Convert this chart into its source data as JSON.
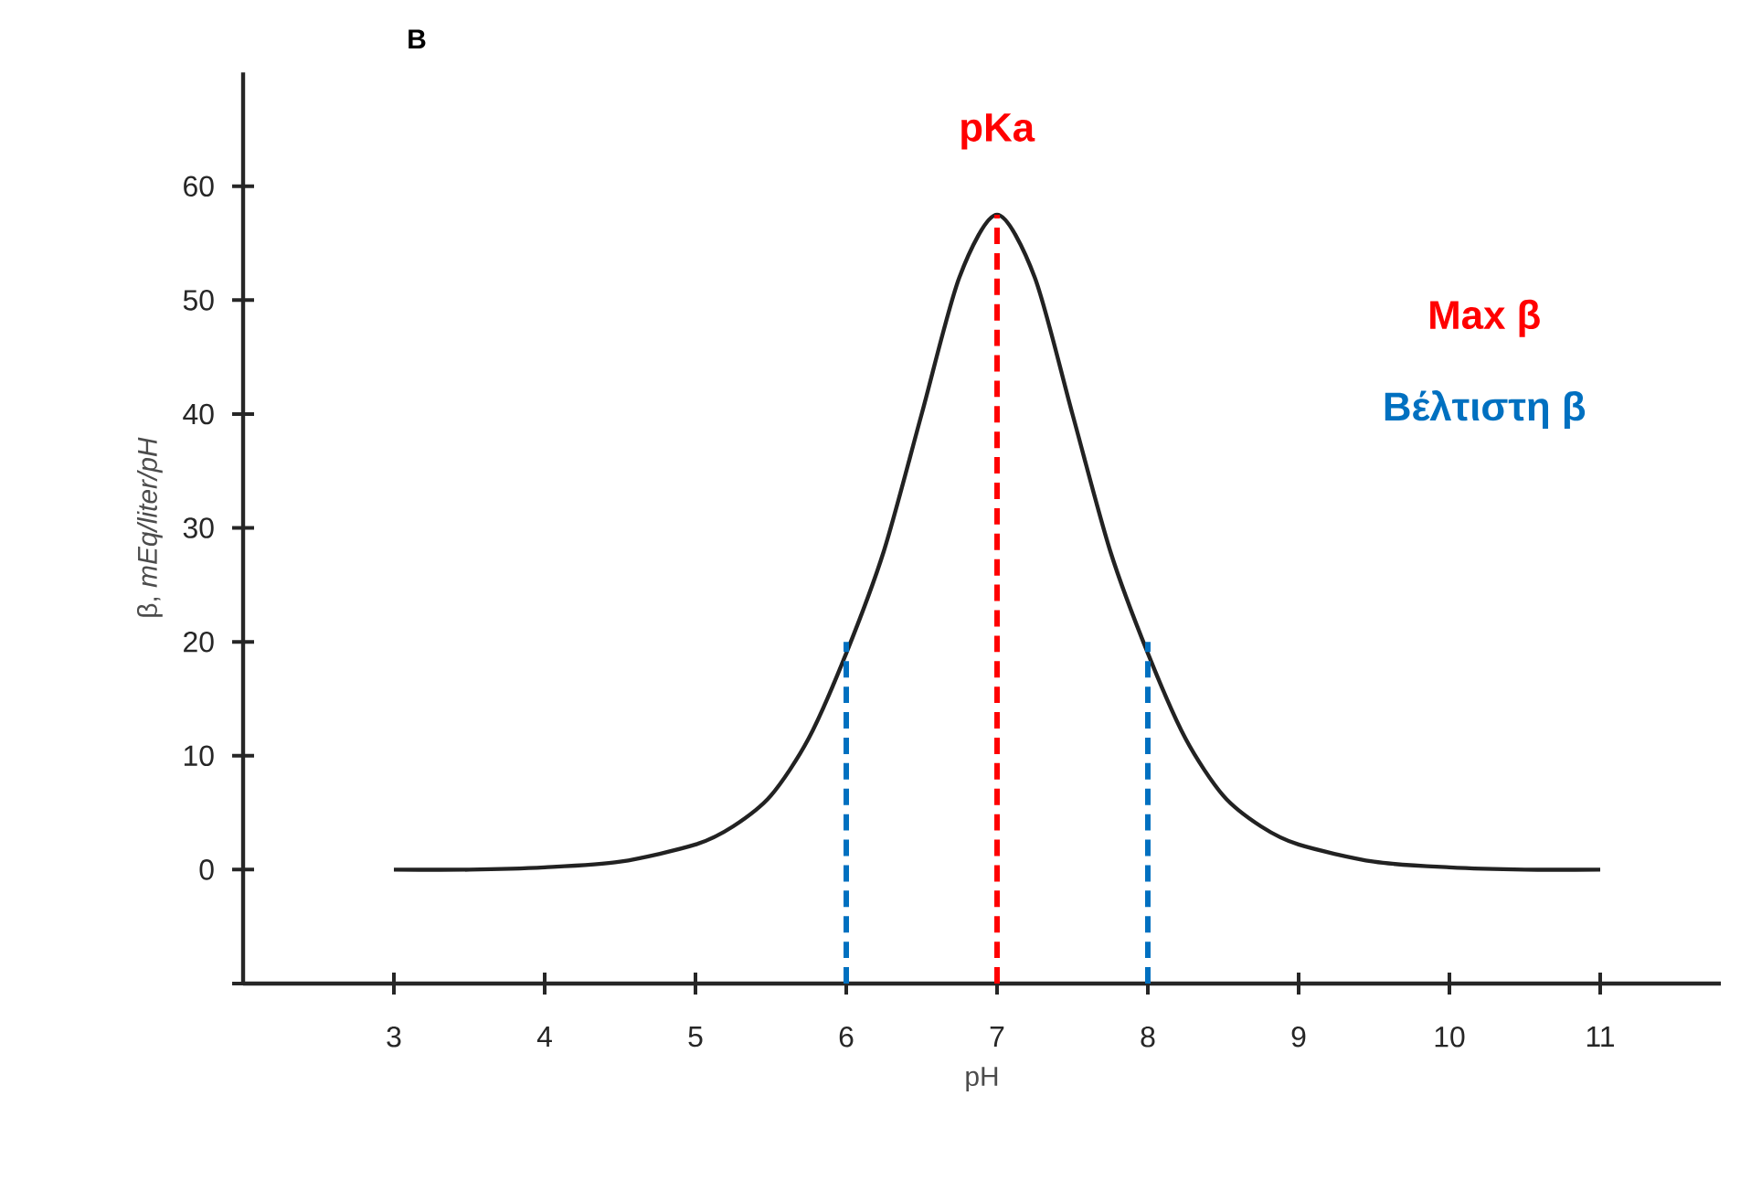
{
  "chart_data": {
    "type": "line",
    "title": "B",
    "xlabel": "pH",
    "ylabel": "β, *mEq/liter/pH*",
    "xlim": [
      2,
      11.8
    ],
    "xticks": [
      3,
      4,
      5,
      6,
      7,
      8,
      9,
      10,
      11
    ],
    "ylim": [
      -10,
      70
    ],
    "yticks": [
      0,
      10,
      20,
      30,
      40,
      50,
      60
    ],
    "grid": false,
    "marker": "none",
    "series": [
      {
        "color": "#222222",
        "line_style": "solid",
        "x": [
          3,
          3.5,
          4,
          4.5,
          5,
          5.25,
          5.5,
          5.75,
          6,
          6.25,
          6.5,
          6.75,
          7,
          7.25,
          7.5,
          7.75,
          8,
          8.25,
          8.5,
          8.75,
          9,
          9.5,
          10,
          10.5,
          11
        ],
        "values": [
          0,
          0,
          0.2,
          0.7,
          2.2,
          3.8,
          6.5,
          11.5,
          19,
          28,
          40,
          52,
          57.5,
          52,
          40,
          28,
          19,
          11.5,
          6.5,
          3.8,
          2.2,
          0.7,
          0.2,
          0,
          0
        ]
      },
      {
        "color": "#0070c0",
        "line_style": "dashed",
        "x": [
          6,
          6
        ],
        "values": [
          -10,
          20
        ]
      },
      {
        "color": "#ff0000",
        "line_style": "dashed",
        "x": [
          7,
          7
        ],
        "values": [
          -10,
          57.5
        ]
      },
      {
        "color": "#0070c0",
        "line_style": "dashed",
        "x": [
          8,
          8
        ],
        "values": [
          -10,
          20
        ]
      }
    ],
    "annotations": [
      "pKa",
      "Max β",
      "Βέλτιστη β"
    ]
  }
}
